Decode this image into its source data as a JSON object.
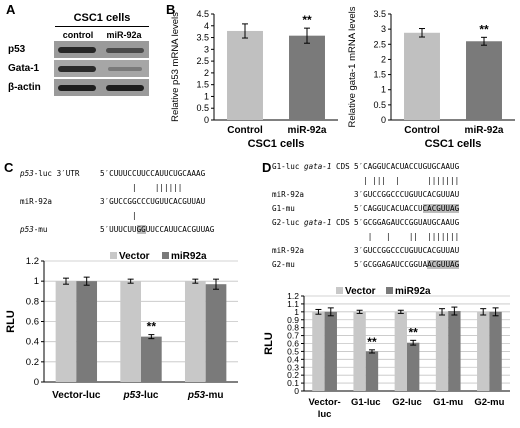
{
  "panels": {
    "A": "A",
    "B": "B",
    "C": "C",
    "D": "D"
  },
  "panel_a": {
    "title": "CSC1 cells",
    "lanes": [
      "control",
      "miR-92a"
    ],
    "proteins": [
      "p53",
      "Gata-1",
      "β-actin"
    ]
  },
  "panel_c_seq": [
    {
      "label_it": "p53",
      "label_rest": "-luc 3′UTR",
      "seq_pre": "5′CUUUCCUUCCAUUCUGCAAAG",
      "seq_hl": "",
      "seq_post": ""
    },
    {
      "label_it": "",
      "label_rest": "",
      "seq_pre": "       |    ||||||",
      "seq_hl": "",
      "seq_post": ""
    },
    {
      "label_it": "",
      "label_rest": "miR-92a",
      "seq_pre": "3′GUCCGGCCCUGUUCACGUUAU",
      "seq_hl": "",
      "seq_post": ""
    },
    {
      "label_it": "",
      "label_rest": "",
      "seq_pre": "       |",
      "seq_hl": "",
      "seq_post": ""
    },
    {
      "label_it": "p53",
      "label_rest": "-mu",
      "seq_pre": "5′UUUCUU",
      "seq_hl": "GG",
      "seq_post": "UUCCAUUCACGUUAG"
    }
  ],
  "panel_d_seq": [
    {
      "label_it": "",
      "label_rest": "G1-luc ",
      "label_it2": "gata-1",
      "label_rest2": " CDS",
      "seq_pre": "5′CAGGUCACUACCUGUGCAAUG",
      "seq_hl": "",
      "seq_post": ""
    },
    {
      "label_it": "",
      "label_rest": "",
      "label_it2": "",
      "label_rest2": "",
      "seq_pre": "  | |||  |      |||||||",
      "seq_hl": "",
      "seq_post": ""
    },
    {
      "label_it": "",
      "label_rest": "miR-92a",
      "label_it2": "",
      "label_rest2": "",
      "seq_pre": "3′GUCCGGCCCUGUUCACGUUAU",
      "seq_hl": "",
      "seq_post": ""
    },
    {
      "label_it": "",
      "label_rest": "G1-mu",
      "label_it2": "",
      "label_rest2": "",
      "seq_pre": "5′CAGGUCACUACCU",
      "seq_hl": "CACGUUAG",
      "seq_post": ""
    },
    {
      "label_it": "",
      "label_rest": "G2-luc ",
      "label_it2": "gata-1",
      "label_rest2": " CDS",
      "seq_pre": "5′GCGGAGAUCCGGUAUGCAAUG",
      "seq_hl": "",
      "seq_post": ""
    },
    {
      "label_it": "",
      "label_rest": "",
      "label_it2": "",
      "label_rest2": "",
      "seq_pre": "   |   |    ||  |||||||",
      "seq_hl": "",
      "seq_post": ""
    },
    {
      "label_it": "",
      "label_rest": "miR-92a",
      "label_it2": "",
      "label_rest2": "",
      "seq_pre": "3′GUCCGGCCCUGUUCACGUUAU",
      "seq_hl": "",
      "seq_post": ""
    },
    {
      "label_it": "",
      "label_rest": "G2-mu",
      "label_it2": "",
      "label_rest2": "",
      "seq_pre": "5′GCGGAGAUCCGGUA",
      "seq_hl": "ACGUUAG",
      "seq_post": ""
    }
  ],
  "chart_data": [
    {
      "id": "b_left",
      "type": "bar",
      "categories": [
        "Control",
        "miR-92a"
      ],
      "values": [
        3.78,
        3.58
      ],
      "errors": [
        0.3,
        0.32
      ],
      "ylabel": "Relative p53 mRNA levels",
      "xlabel": "CSC1 cells",
      "ylim": [
        0,
        4.5
      ],
      "ytick_step": 0.5,
      "decimals": 1,
      "ticklabels": [
        "0",
        "0.5",
        "1",
        "1.5",
        "2",
        "2.5",
        "3",
        "3.5",
        "4",
        "4.5"
      ],
      "colors": [
        "#c0c0c0",
        "#7a7a7a"
      ],
      "annotations": [
        {
          "index": 1,
          "text": "**"
        }
      ],
      "grid": false
    },
    {
      "id": "b_right",
      "type": "bar",
      "categories": [
        "Control",
        "miR-92a"
      ],
      "values": [
        2.88,
        2.6
      ],
      "errors": [
        0.14,
        0.13
      ],
      "ylabel": "Relative gata-1 mRNA levels",
      "xlabel": "CSC1 cells",
      "ylim": [
        0,
        3.5
      ],
      "ytick_step": 0.5,
      "decimals": 1,
      "ticklabels": [
        "0",
        "0.5",
        "1",
        "1.5",
        "2",
        "2.5",
        "3",
        "3.5"
      ],
      "colors": [
        "#c0c0c0",
        "#7a7a7a"
      ],
      "annotations": [
        {
          "index": 1,
          "text": "**"
        }
      ],
      "grid": false
    },
    {
      "id": "c_rlu",
      "type": "bar",
      "categories": [
        "Vector-luc",
        "p53-luc",
        "p53-mu"
      ],
      "category_italic_prefix": [
        "",
        "p53",
        "p53"
      ],
      "category_rest": [
        "Vector-luc",
        "-luc",
        "-mu"
      ],
      "series": [
        {
          "name": "Vector",
          "values": [
            1.0,
            1.0,
            1.0
          ],
          "errors": [
            0.03,
            0.02,
            0.02
          ]
        },
        {
          "name": "miR92a",
          "values": [
            1.0,
            0.45,
            0.97
          ],
          "errors": [
            0.04,
            0.02,
            0.05
          ]
        }
      ],
      "ylabel": "RLU",
      "ylim": [
        0,
        1.2
      ],
      "ticklabels": [
        "0",
        "0.2",
        "0.4",
        "0.6",
        "0.8",
        "1",
        "1.2"
      ],
      "colors": [
        "#c8c8c8",
        "#7a7a7a"
      ],
      "annotations": [
        {
          "series": 1,
          "index": 1,
          "text": "**"
        }
      ],
      "grid": true,
      "legend": "top"
    },
    {
      "id": "d_rlu",
      "type": "bar",
      "categories": [
        "Vector-luc",
        "G1-luc",
        "G2-luc",
        "G1-mu",
        "G2-mu"
      ],
      "category_lines": [
        [
          "Vector-",
          "luc"
        ],
        [
          "G1-luc"
        ],
        [
          "G2-luc"
        ],
        [
          "G1-mu"
        ],
        [
          "G2-mu"
        ]
      ],
      "series": [
        {
          "name": "Vector",
          "values": [
            1.0,
            1.0,
            1.0,
            1.0,
            1.0
          ],
          "errors": [
            0.03,
            0.02,
            0.02,
            0.04,
            0.04
          ]
        },
        {
          "name": "miR92a",
          "values": [
            1.0,
            0.5,
            0.61,
            1.01,
            1.0
          ],
          "errors": [
            0.05,
            0.02,
            0.03,
            0.05,
            0.05
          ]
        }
      ],
      "ylabel": "RLU",
      "ylim": [
        0,
        1.2
      ],
      "ticklabels": [
        "0",
        "0.1",
        "0.2",
        "0.3",
        "0.4",
        "0.5",
        "0.6",
        "0.7",
        "0.8",
        "0.9",
        "1",
        "1.1",
        "1.2"
      ],
      "colors": [
        "#c8c8c8",
        "#7a7a7a"
      ],
      "annotations": [
        {
          "series": 1,
          "index": 1,
          "text": "**"
        },
        {
          "series": 1,
          "index": 2,
          "text": "**"
        }
      ],
      "grid": true,
      "legend": "top"
    }
  ]
}
